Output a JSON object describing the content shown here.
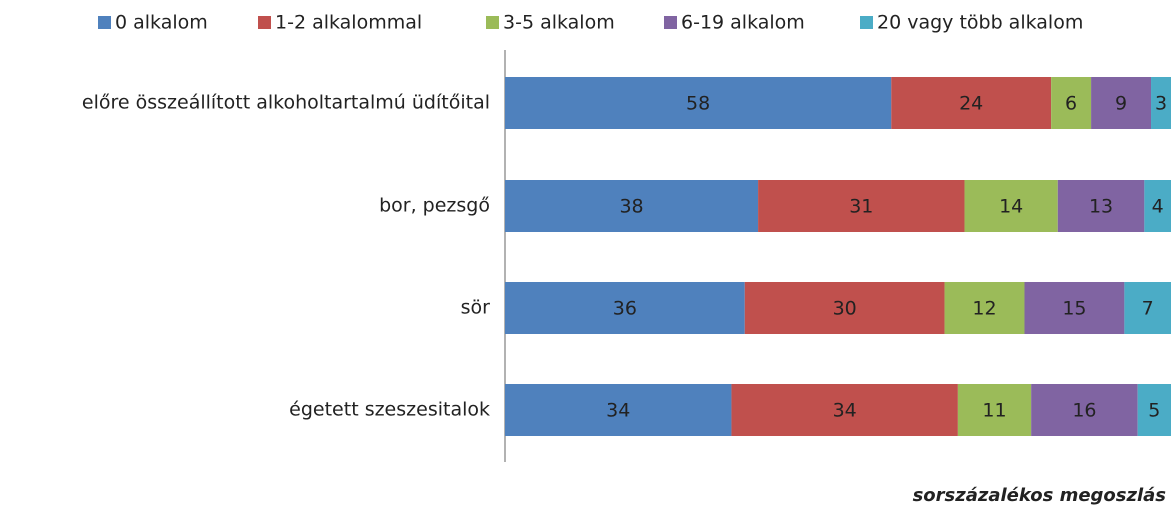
{
  "chart_data": {
    "type": "stacked-bar-horizontal",
    "categories": [
      "előre összeállított alkoholtartalmú üdítőital",
      "bor, pezsgő",
      "sör",
      "égetett szeszesitalok"
    ],
    "series": [
      {
        "name": "0 alkalom",
        "color": "#4f81bd",
        "values": [
          58,
          38,
          36,
          34
        ]
      },
      {
        "name": "1-2 alkalommal",
        "color": "#c0504d",
        "values": [
          24,
          31,
          30,
          34
        ]
      },
      {
        "name": "3-5 alkalom",
        "color": "#9bbb59",
        "values": [
          6,
          14,
          12,
          11
        ]
      },
      {
        "name": "6-19 alkalom",
        "color": "#8064a2",
        "values": [
          9,
          13,
          15,
          16
        ]
      },
      {
        "name": "20 vagy több alkalom",
        "color": "#4bacc6",
        "values": [
          3,
          4,
          7,
          5
        ]
      }
    ],
    "xlim": [
      0,
      100
    ],
    "annotation": "sorszázalékos megoszlás"
  }
}
